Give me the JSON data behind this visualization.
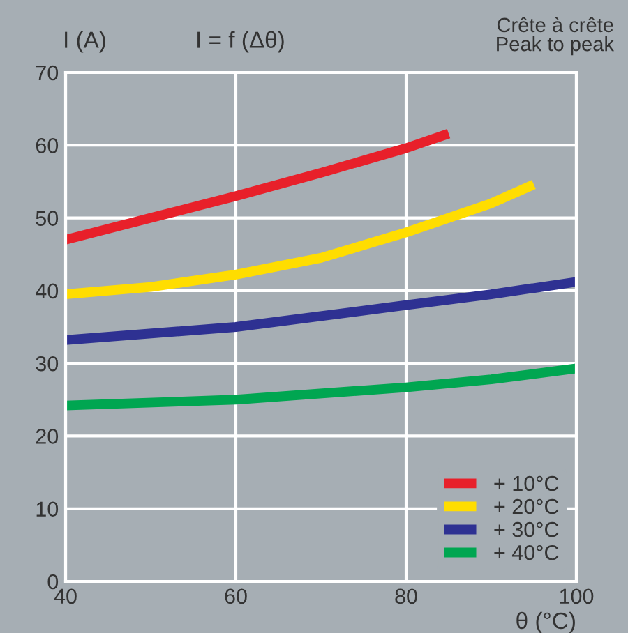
{
  "chart_data": {
    "type": "line",
    "title": "I = f (Δθ)",
    "ylabel": "I (A)",
    "xlabel": "θ (°C)",
    "annotations": [
      "Crête à crête\nPeak to peak"
    ],
    "series": [
      {
        "name": "+ 10°C",
        "color": "#e8202a",
        "x": [
          40,
          50,
          60,
          70,
          80,
          85
        ],
        "values": [
          47,
          50,
          53,
          56.2,
          59.6,
          61.6
        ]
      },
      {
        "name": "+ 20°C",
        "color": "#ffdd00",
        "x": [
          40,
          50,
          60,
          70,
          80,
          90,
          95
        ],
        "values": [
          39.5,
          40.5,
          42.2,
          44.5,
          48,
          52,
          54.6
        ]
      },
      {
        "name": "+ 30°C",
        "color": "#2e3192",
        "x": [
          40,
          60,
          80,
          90,
          100
        ],
        "values": [
          33.2,
          35,
          38,
          39.5,
          41.2
        ]
      },
      {
        "name": "+ 40°C",
        "color": "#00a651",
        "x": [
          40,
          60,
          80,
          90,
          100
        ],
        "values": [
          24.2,
          25,
          26.7,
          27.8,
          29.3
        ]
      }
    ],
    "xlim": [
      40,
      100
    ],
    "ylim": [
      0,
      70
    ],
    "xticks": [
      40,
      60,
      80,
      100
    ],
    "yticks": [
      0,
      10,
      20,
      30,
      40,
      50,
      60,
      70
    ],
    "grid": true,
    "legend": "bottom right",
    "line_style": "solid"
  }
}
